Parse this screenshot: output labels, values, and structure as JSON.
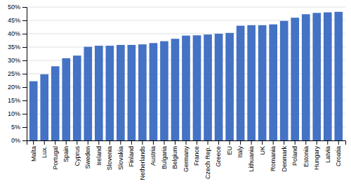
{
  "chart_data": {
    "type": "bar",
    "categories": [
      "Malta",
      "Lux.",
      "Portugal",
      "Spain",
      "Cyprus",
      "Sweden",
      "Ireland",
      "Slovenia",
      "Slovakia",
      "Finland",
      "Netherlands",
      "Austria",
      "Bulgaria",
      "Belgium",
      "Germany",
      "France",
      "Czech Rep.",
      "Greece",
      "EU",
      "Italy",
      "Lithuania",
      "UK",
      "Romania",
      "Denmark",
      "Poland",
      "Estonia",
      "Hungary",
      "Latvia",
      "Croatia"
    ],
    "values": [
      0.222,
      0.248,
      0.278,
      0.308,
      0.318,
      0.351,
      0.355,
      0.355,
      0.358,
      0.358,
      0.36,
      0.365,
      0.372,
      0.381,
      0.393,
      0.394,
      0.397,
      0.4,
      0.403,
      0.43,
      0.432,
      0.432,
      0.435,
      0.448,
      0.46,
      0.473,
      0.478,
      0.48,
      0.482
    ],
    "color": "#4472C4",
    "ylim": [
      0,
      0.5
    ],
    "yticks": [
      {
        "value": 0,
        "label": "0%"
      },
      {
        "value": 0.05,
        "label": "5%"
      },
      {
        "value": 0.1,
        "label": "10%"
      },
      {
        "value": 0.15,
        "label": "15%"
      },
      {
        "value": 0.2,
        "label": "20%"
      },
      {
        "value": 0.25,
        "label": "25%"
      },
      {
        "value": 0.3,
        "label": "30%"
      },
      {
        "value": 0.35,
        "label": "35%"
      },
      {
        "value": 0.4,
        "label": "40%"
      },
      {
        "value": 0.45,
        "label": "45%"
      },
      {
        "value": 0.5,
        "label": "50%"
      }
    ],
    "grid": true
  }
}
